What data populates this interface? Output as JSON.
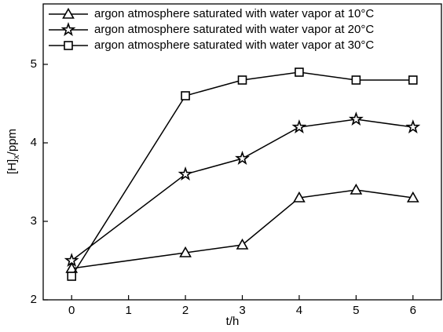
{
  "chart_data": {
    "type": "line",
    "x_label": "t/h",
    "y_label": [
      "[H]",
      "x",
      "/ppm"
    ],
    "x": [
      0,
      2,
      3,
      4,
      5,
      6
    ],
    "series": [
      {
        "name": "argon atmosphere saturated with water vapor at 10°C",
        "color": "#000000",
        "marker": "triangle",
        "values": [
          2.4,
          2.6,
          2.7,
          3.3,
          3.4,
          3.3
        ]
      },
      {
        "name": "argon atmosphere saturated with water vapor at 20°C",
        "color": "#000000",
        "marker": "star",
        "values": [
          2.5,
          3.6,
          3.8,
          4.2,
          4.3,
          4.2
        ]
      },
      {
        "name": "argon atmosphere saturated with water vapor at 30°C",
        "color": "#000000",
        "marker": "square",
        "values": [
          2.3,
          4.6,
          4.8,
          4.9,
          4.8,
          4.8
        ]
      }
    ],
    "xlim": [
      -0.5,
      6.5
    ],
    "xticks": [
      0,
      1,
      2,
      3,
      4,
      5,
      6
    ],
    "ylim": [
      2,
      5.77
    ],
    "yticks": [
      2,
      3,
      4,
      5
    ],
    "grid": false,
    "legend": "top-left"
  }
}
